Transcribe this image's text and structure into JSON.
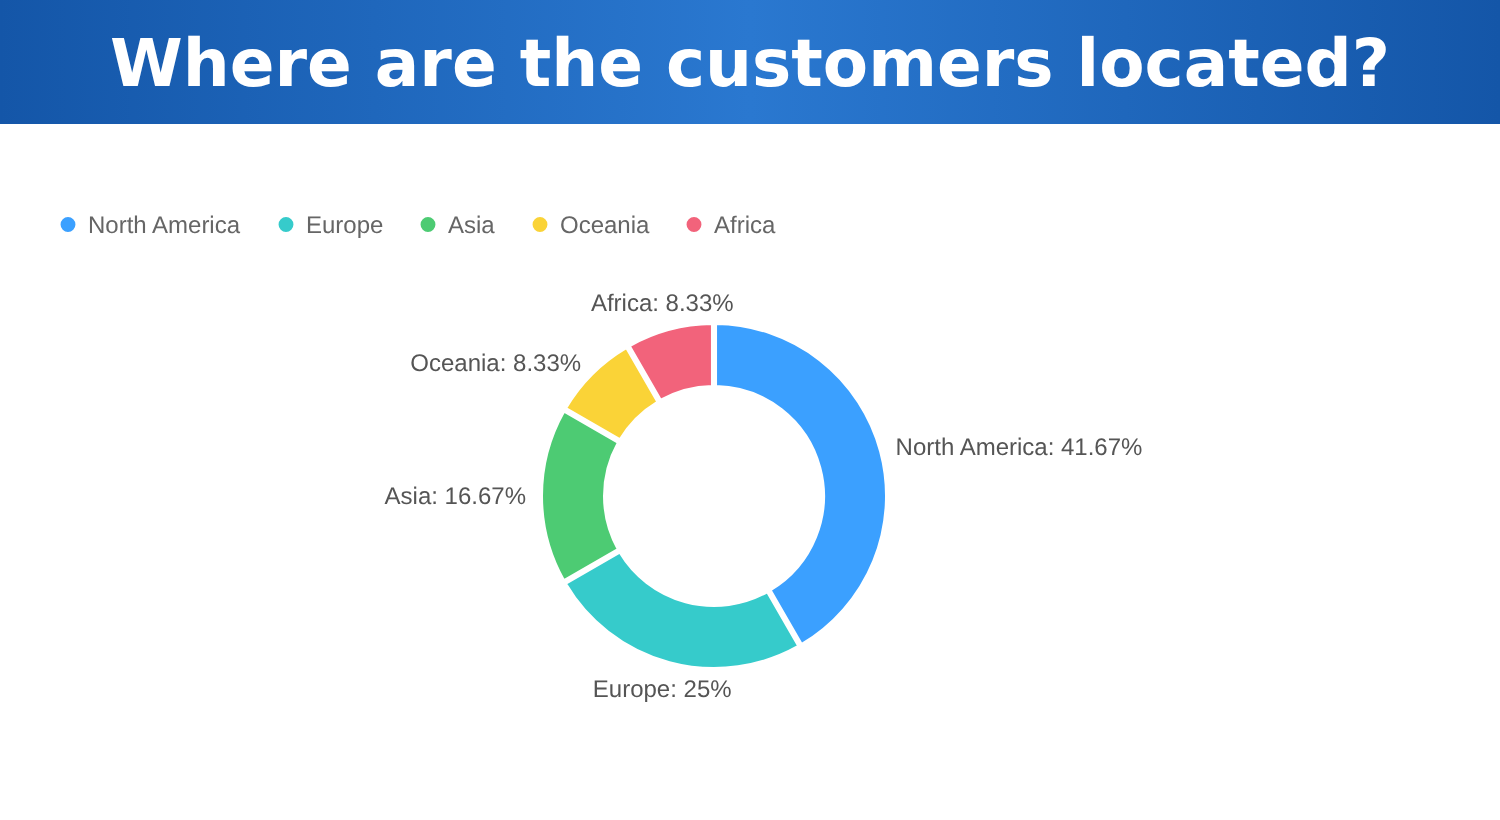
{
  "chart_data": {
    "type": "donut",
    "title": "Where are the customers located?",
    "categories": [
      "North America",
      "Europe",
      "Asia",
      "Oceania",
      "Africa"
    ],
    "values": [
      41.67,
      25,
      16.67,
      8.33,
      8.33
    ],
    "colors": [
      "#3ba0ff",
      "#36cbcb",
      "#4dcb73",
      "#fad337",
      "#f2637b"
    ],
    "value_labels": [
      "North America: 41.67%",
      "Europe: 25%",
      "Asia: 16.67%",
      "Oceania: 8.33%",
      "Africa: 8.33%"
    ],
    "legend": "top left"
  }
}
